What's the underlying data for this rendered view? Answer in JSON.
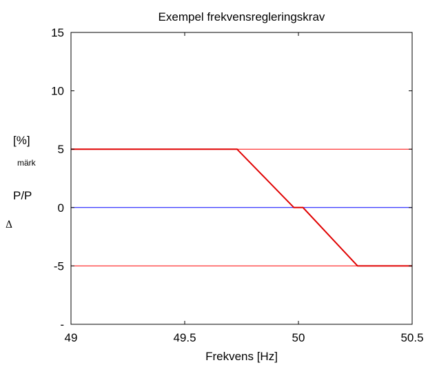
{
  "chart_data": {
    "type": "line",
    "title": "Exempel frekvensregleringskrav",
    "xlabel": "Frekvens [Hz]",
    "ylabel_parts": [
      "[%]",
      "märk",
      "P/P",
      "Δ"
    ],
    "xlim": [
      49,
      50.5
    ],
    "ylim": [
      -10,
      15
    ],
    "xticks": [
      49,
      49.5,
      50,
      50.5
    ],
    "xtick_labels": [
      "49",
      "49.5",
      "50",
      "50.5"
    ],
    "yticks": [
      -10,
      -5,
      0,
      5,
      10,
      15
    ],
    "ytick_labels": [
      "-",
      "-5",
      "0",
      "5",
      "10",
      "15"
    ],
    "grid": false,
    "series": [
      {
        "color": "#ff0000",
        "width": 1,
        "x": [
          49,
          50.5
        ],
        "y": [
          5,
          5
        ]
      },
      {
        "color": "#ff0000",
        "width": 1,
        "x": [
          49,
          50.5
        ],
        "y": [
          -5,
          -5
        ]
      },
      {
        "color": "#0000ff",
        "width": 1,
        "x": [
          49,
          50.5
        ],
        "y": [
          0,
          0
        ]
      },
      {
        "color": "#e00000",
        "width": 2,
        "x": [
          49,
          49.73,
          49.98,
          50.02,
          50.26,
          50.5
        ],
        "y": [
          5,
          5,
          0,
          0,
          -5,
          -5
        ]
      }
    ]
  }
}
